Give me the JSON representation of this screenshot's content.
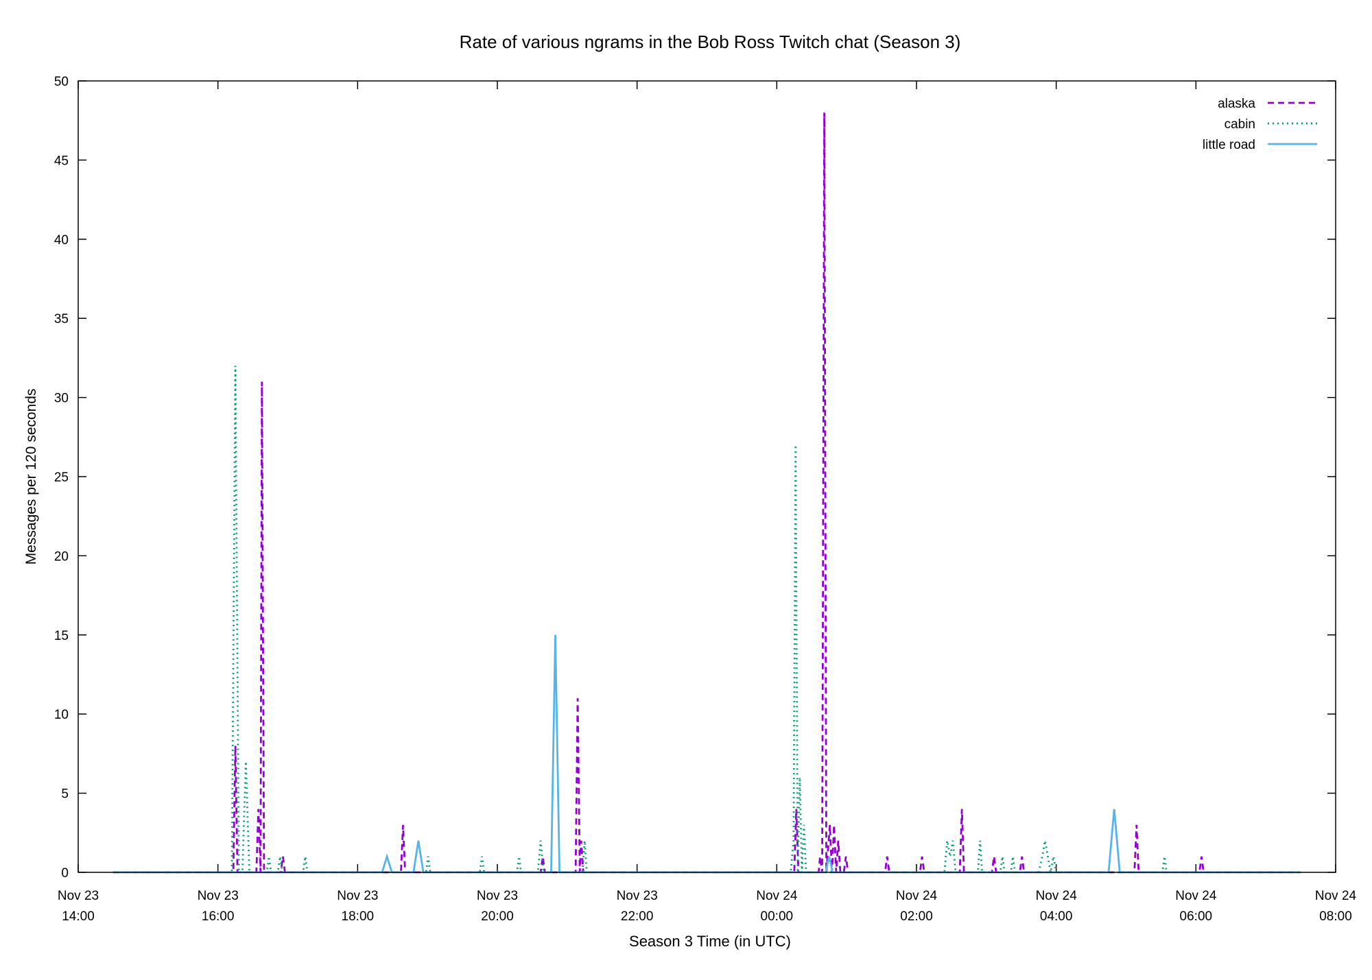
{
  "chart_data": {
    "type": "line",
    "title": "Rate of various ngrams in the Bob Ross Twitch chat (Season 3)",
    "xlabel": "Season 3 Time (in UTC)",
    "ylabel": "Messages per 120 seconds",
    "x_unit": "hours since Nov 23 14:00 UTC",
    "xlim": [
      0,
      18
    ],
    "ylim": [
      0,
      50
    ],
    "grid": false,
    "legend_position": "top-right",
    "x_ticks": [
      {
        "value": 0,
        "line1": "Nov 23",
        "line2": "14:00"
      },
      {
        "value": 2,
        "line1": "Nov 23",
        "line2": "16:00"
      },
      {
        "value": 4,
        "line1": "Nov 23",
        "line2": "18:00"
      },
      {
        "value": 6,
        "line1": "Nov 23",
        "line2": "20:00"
      },
      {
        "value": 8,
        "line1": "Nov 23",
        "line2": "22:00"
      },
      {
        "value": 10,
        "line1": "Nov 24",
        "line2": "00:00"
      },
      {
        "value": 12,
        "line1": "Nov 24",
        "line2": "02:00"
      },
      {
        "value": 14,
        "line1": "Nov 24",
        "line2": "04:00"
      },
      {
        "value": 16,
        "line1": "Nov 24",
        "line2": "06:00"
      },
      {
        "value": 18,
        "line1": "Nov 24",
        "line2": "08:00"
      }
    ],
    "y_ticks": [
      0,
      5,
      10,
      15,
      20,
      25,
      30,
      35,
      40,
      45,
      50
    ],
    "series": [
      {
        "name": "alaska",
        "color": "#9400d3",
        "style": "dashed",
        "points": [
          [
            0.5,
            0
          ],
          [
            2.22,
            0
          ],
          [
            2.25,
            8
          ],
          [
            2.28,
            0
          ],
          [
            2.55,
            0
          ],
          [
            2.58,
            4
          ],
          [
            2.61,
            0
          ],
          [
            2.63,
            31
          ],
          [
            2.66,
            0
          ],
          [
            2.9,
            0
          ],
          [
            2.93,
            1
          ],
          [
            2.96,
            0
          ],
          [
            4.62,
            0
          ],
          [
            4.65,
            3
          ],
          [
            4.68,
            0
          ],
          [
            6.62,
            0
          ],
          [
            6.65,
            1
          ],
          [
            6.68,
            0
          ],
          [
            7.12,
            0
          ],
          [
            7.15,
            11
          ],
          [
            7.18,
            0
          ],
          [
            7.2,
            2
          ],
          [
            7.23,
            0
          ],
          [
            10.25,
            0
          ],
          [
            10.28,
            4
          ],
          [
            10.31,
            0
          ],
          [
            10.6,
            0
          ],
          [
            10.62,
            1
          ],
          [
            10.65,
            0
          ],
          [
            10.68,
            48
          ],
          [
            10.71,
            0
          ],
          [
            10.76,
            3
          ],
          [
            10.79,
            0
          ],
          [
            10.82,
            3
          ],
          [
            10.85,
            0
          ],
          [
            10.88,
            2
          ],
          [
            10.91,
            0
          ],
          [
            10.96,
            0
          ],
          [
            10.99,
            1
          ],
          [
            11.02,
            0
          ],
          [
            11.55,
            0
          ],
          [
            11.58,
            1
          ],
          [
            11.61,
            0
          ],
          [
            12.05,
            0
          ],
          [
            12.08,
            1
          ],
          [
            12.11,
            0
          ],
          [
            12.62,
            0
          ],
          [
            12.65,
            4
          ],
          [
            12.68,
            0
          ],
          [
            13.08,
            0
          ],
          [
            13.11,
            1
          ],
          [
            13.14,
            0
          ],
          [
            13.48,
            0
          ],
          [
            13.51,
            1
          ],
          [
            13.54,
            0
          ],
          [
            15.12,
            0
          ],
          [
            15.15,
            3
          ],
          [
            15.18,
            0
          ],
          [
            16.05,
            0
          ],
          [
            16.08,
            1
          ],
          [
            16.11,
            0
          ],
          [
            17.5,
            0
          ]
        ]
      },
      {
        "name": "cabin",
        "color": "#009e73",
        "style": "dotted",
        "points": [
          [
            0.5,
            0
          ],
          [
            2.2,
            0
          ],
          [
            2.25,
            32
          ],
          [
            2.3,
            0
          ],
          [
            2.35,
            0
          ],
          [
            2.4,
            7
          ],
          [
            2.45,
            0
          ],
          [
            2.7,
            0
          ],
          [
            2.73,
            1
          ],
          [
            2.76,
            0
          ],
          [
            2.86,
            0
          ],
          [
            2.89,
            1
          ],
          [
            2.92,
            0
          ],
          [
            3.22,
            0
          ],
          [
            3.25,
            1
          ],
          [
            3.28,
            0
          ],
          [
            4.98,
            0
          ],
          [
            5.01,
            1
          ],
          [
            5.04,
            0
          ],
          [
            5.75,
            0
          ],
          [
            5.78,
            1
          ],
          [
            5.81,
            0
          ],
          [
            6.28,
            0
          ],
          [
            6.31,
            1
          ],
          [
            6.34,
            0
          ],
          [
            6.58,
            0
          ],
          [
            6.62,
            2
          ],
          [
            6.66,
            0
          ],
          [
            7.22,
            0
          ],
          [
            7.25,
            2
          ],
          [
            7.28,
            0
          ],
          [
            10.2,
            0
          ],
          [
            10.24,
            2
          ],
          [
            10.27,
            27
          ],
          [
            10.3,
            0
          ],
          [
            10.33,
            6
          ],
          [
            10.36,
            0
          ],
          [
            10.39,
            3
          ],
          [
            10.42,
            0
          ],
          [
            12.4,
            0
          ],
          [
            12.44,
            2
          ],
          [
            12.48,
            1
          ],
          [
            12.52,
            2
          ],
          [
            12.56,
            0
          ],
          [
            12.88,
            0
          ],
          [
            12.91,
            2
          ],
          [
            12.94,
            0
          ],
          [
            13.2,
            0
          ],
          [
            13.23,
            1
          ],
          [
            13.26,
            0
          ],
          [
            13.35,
            0
          ],
          [
            13.38,
            1
          ],
          [
            13.41,
            0
          ],
          [
            13.75,
            0
          ],
          [
            13.8,
            1
          ],
          [
            13.84,
            2
          ],
          [
            13.88,
            1
          ],
          [
            13.92,
            0
          ],
          [
            13.96,
            1
          ],
          [
            14.0,
            0
          ],
          [
            15.52,
            0
          ],
          [
            15.55,
            1
          ],
          [
            15.58,
            0
          ],
          [
            17.5,
            0
          ]
        ]
      },
      {
        "name": "little road",
        "color": "#56b4e9",
        "style": "solid",
        "points": [
          [
            0.5,
            0
          ],
          [
            4.35,
            0
          ],
          [
            4.42,
            1
          ],
          [
            4.49,
            0
          ],
          [
            4.8,
            0
          ],
          [
            4.87,
            2
          ],
          [
            4.94,
            0
          ],
          [
            6.77,
            0
          ],
          [
            6.83,
            15
          ],
          [
            6.89,
            0
          ],
          [
            10.7,
            0
          ],
          [
            10.75,
            1
          ],
          [
            10.8,
            0
          ],
          [
            14.75,
            0
          ],
          [
            14.83,
            4
          ],
          [
            14.91,
            0
          ],
          [
            17.5,
            0
          ]
        ]
      }
    ]
  }
}
